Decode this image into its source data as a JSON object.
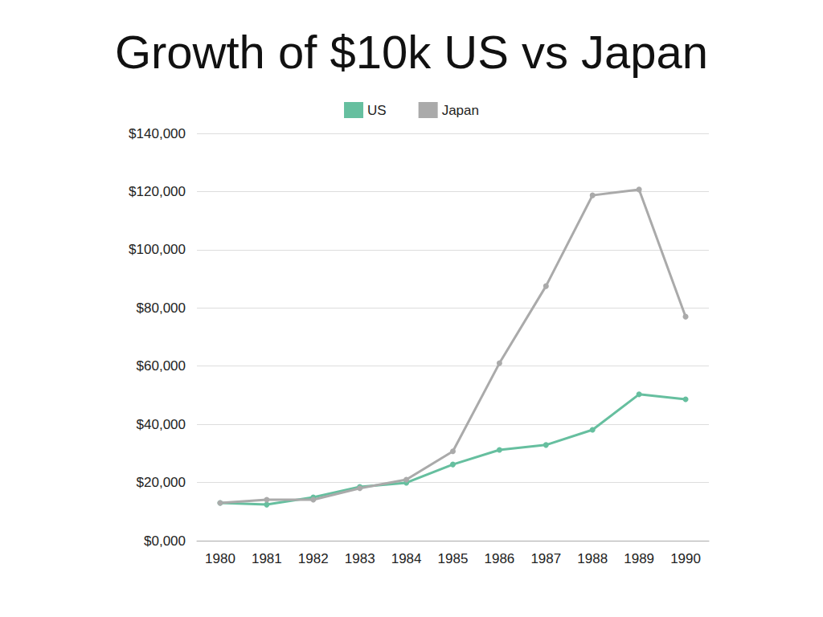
{
  "chart_data": {
    "type": "line",
    "title": "Growth of $10k US vs Japan",
    "categories": [
      "1980",
      "1981",
      "1982",
      "1983",
      "1984",
      "1985",
      "1986",
      "1987",
      "1988",
      "1989",
      "1990"
    ],
    "series": [
      {
        "name": "US",
        "color": "#66bf9f",
        "marker": "circle",
        "values": [
          13000,
          12400,
          14900,
          18500,
          19900,
          26200,
          31200,
          32900,
          38100,
          50300,
          48600
        ]
      },
      {
        "name": "Japan",
        "color": "#aaaaaa",
        "marker": "circle",
        "values": [
          13000,
          14100,
          14100,
          18000,
          21000,
          30700,
          61000,
          87500,
          118700,
          120700,
          77000
        ]
      }
    ],
    "ylim": [
      0,
      140000
    ],
    "yticks": [
      {
        "value": 0,
        "label": "$0,000"
      },
      {
        "value": 20000,
        "label": "$20,000"
      },
      {
        "value": 40000,
        "label": "$40,000"
      },
      {
        "value": 60000,
        "label": "$60,000"
      },
      {
        "value": 80000,
        "label": "$80,000"
      },
      {
        "value": 100000,
        "label": "$100,000"
      },
      {
        "value": 120000,
        "label": "$120,000"
      },
      {
        "value": 140000,
        "label": "$140,000"
      }
    ],
    "grid": true,
    "legend": "top"
  }
}
